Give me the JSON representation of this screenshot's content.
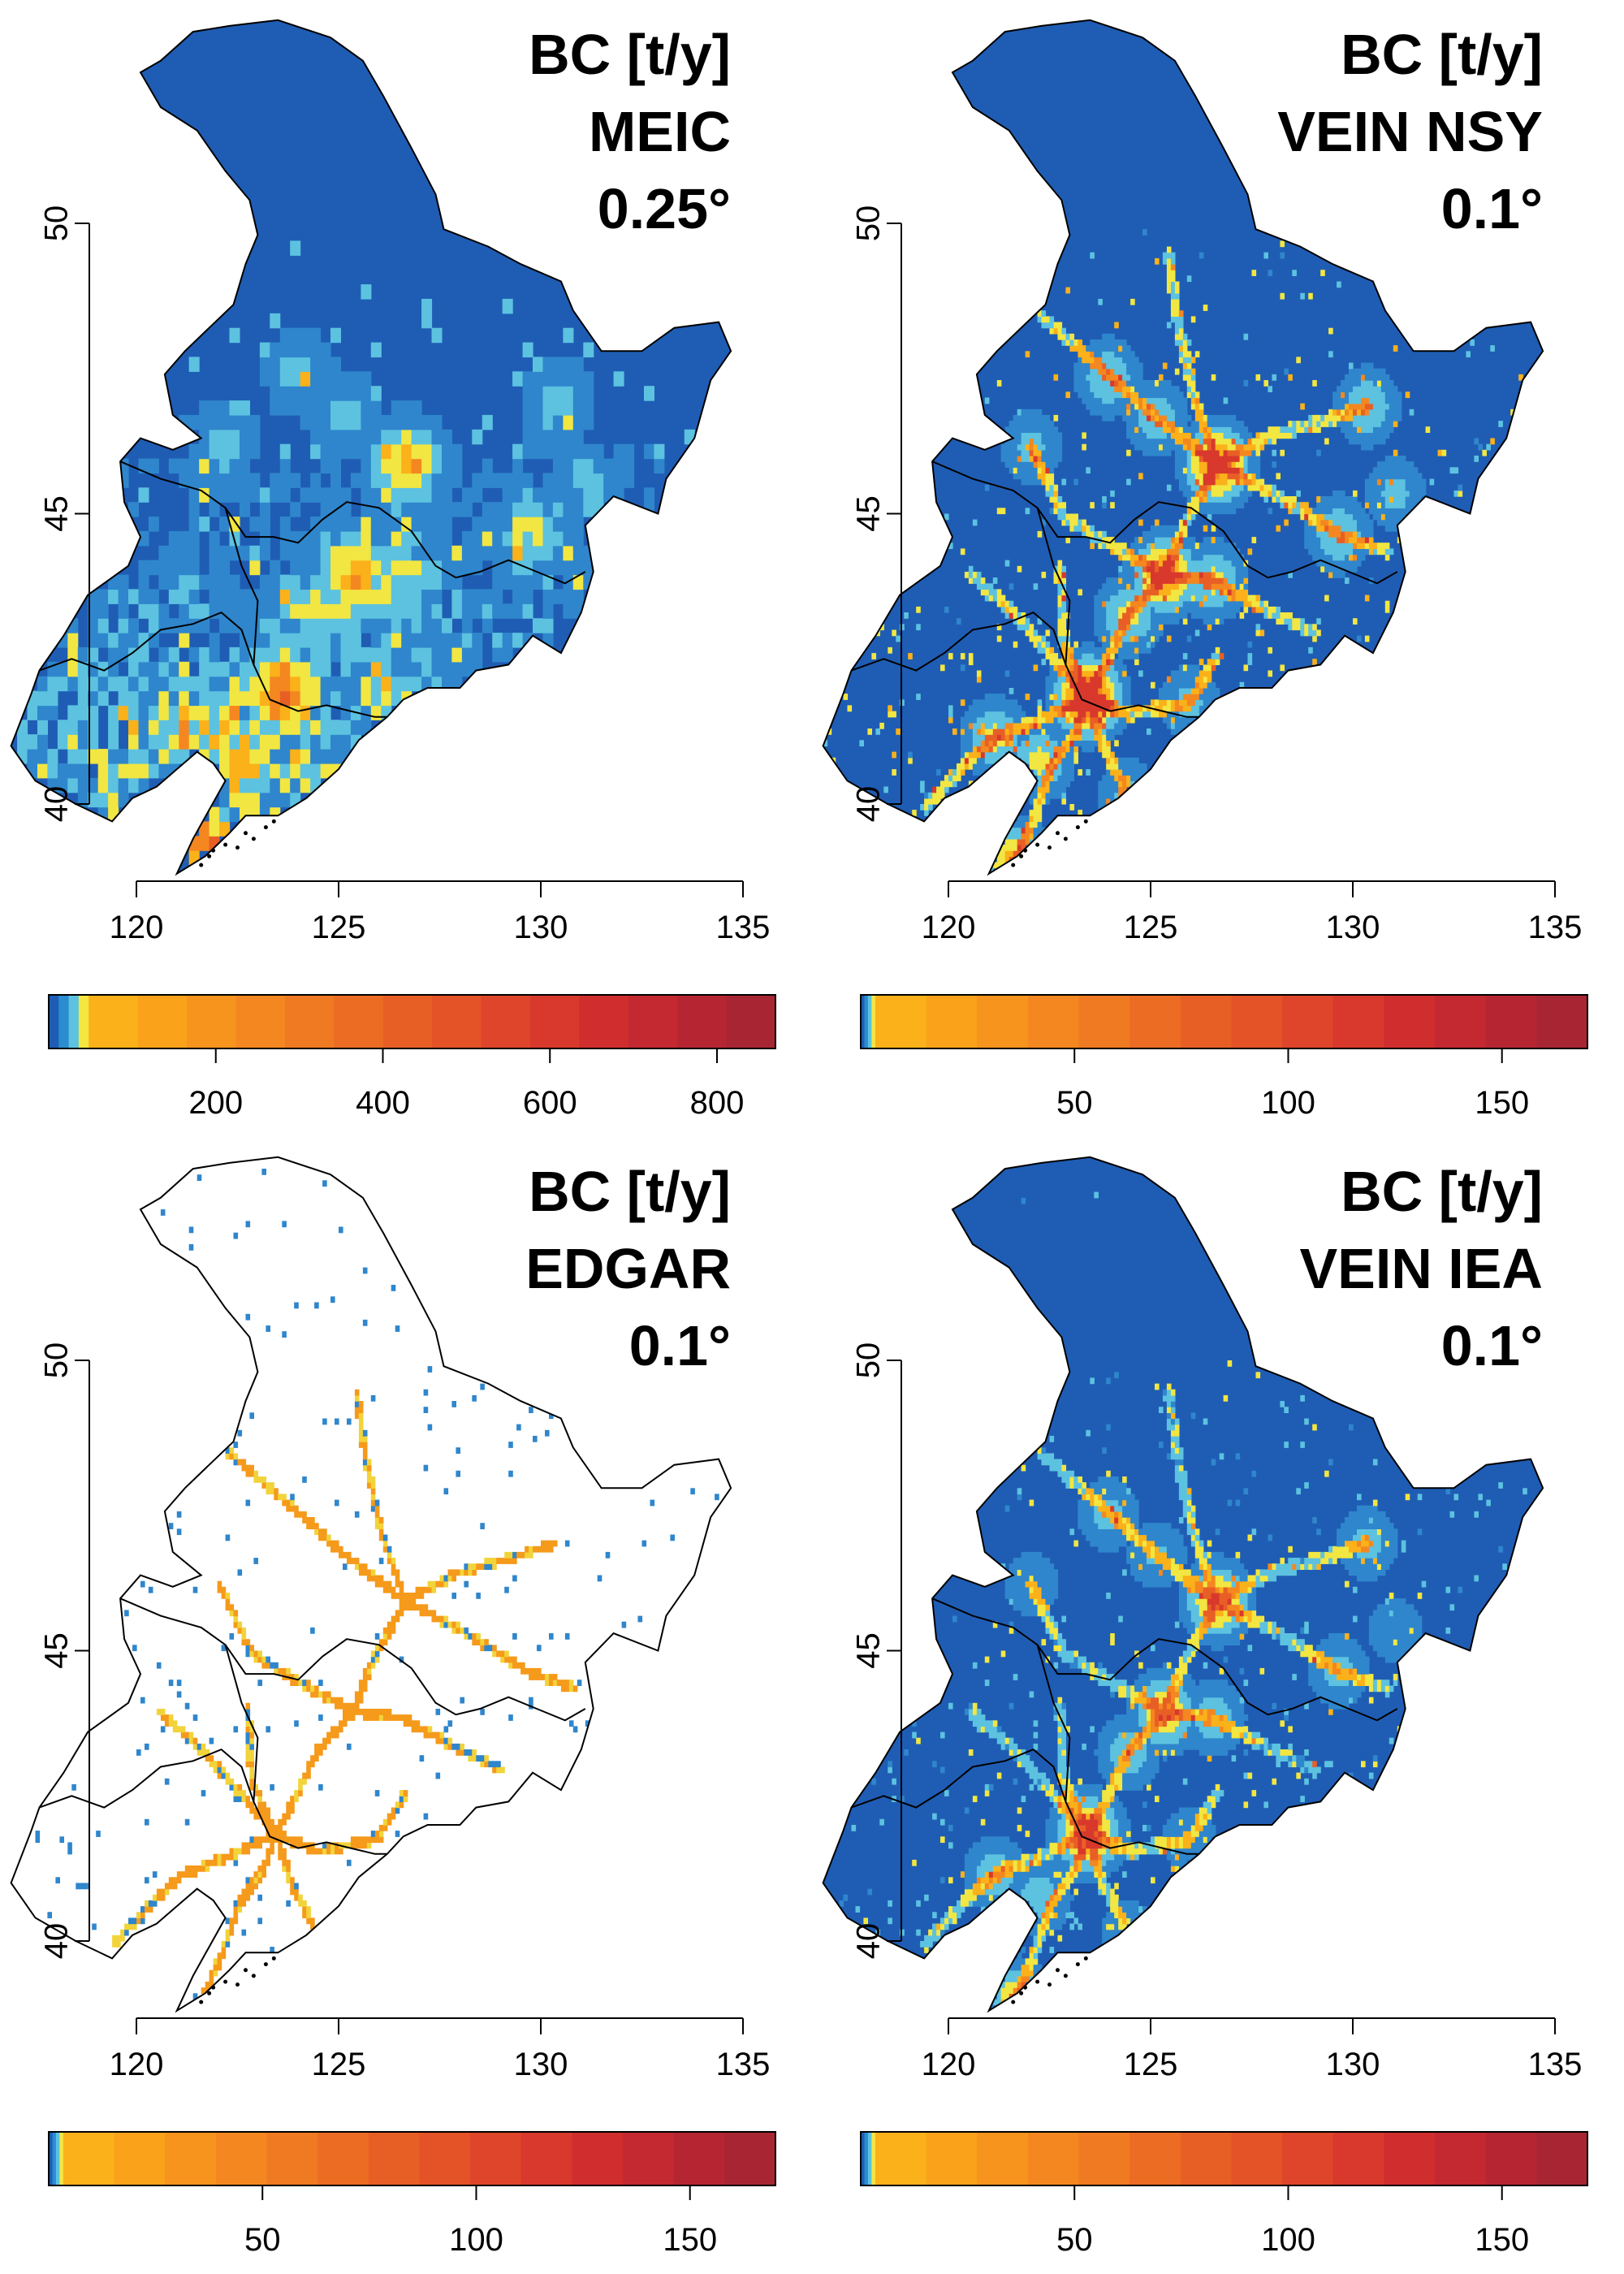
{
  "panels": [
    {
      "title": [
        "BC [t/y]",
        "MEIC",
        "0.25°"
      ],
      "map_background": "#1f5db4",
      "filled": true,
      "lat_ticks": [
        "40",
        "45",
        "50"
      ],
      "lon_ticks": [
        "120",
        "125",
        "130",
        "135"
      ],
      "colorbar": {
        "ticks": [
          "200",
          "400",
          "600",
          "800"
        ],
        "tick_values": [
          200,
          400,
          600,
          800
        ],
        "min": 0,
        "max": 870
      }
    },
    {
      "title": [
        "BC [t/y]",
        "VEIN NSY",
        "0.1°"
      ],
      "map_background": "#1f5db4",
      "filled": true,
      "lat_ticks": [
        "40",
        "45",
        "50"
      ],
      "lon_ticks": [
        "120",
        "125",
        "130",
        "135"
      ],
      "colorbar": {
        "ticks": [
          "50",
          "100",
          "150"
        ],
        "tick_values": [
          50,
          100,
          150
        ],
        "min": 0,
        "max": 170
      }
    },
    {
      "title": [
        "BC [t/y]",
        "EDGAR",
        "0.1°"
      ],
      "map_background": "#ffffff",
      "filled": false,
      "lat_ticks": [
        "40",
        "45",
        "50"
      ],
      "lon_ticks": [
        "120",
        "125",
        "130",
        "135"
      ],
      "colorbar": {
        "ticks": [
          "50",
          "100",
          "150"
        ],
        "tick_values": [
          50,
          100,
          150
        ],
        "min": 0,
        "max": 170
      }
    },
    {
      "title": [
        "BC [t/y]",
        "VEIN IEA",
        "0.1°"
      ],
      "map_background": "#1f5db4",
      "filled": true,
      "lat_ticks": [
        "40",
        "45",
        "50"
      ],
      "lon_ticks": [
        "120",
        "125",
        "130",
        "135"
      ],
      "colorbar": {
        "ticks": [
          "50",
          "100",
          "150"
        ],
        "tick_values": [
          50,
          100,
          150
        ],
        "min": 0,
        "max": 170
      }
    }
  ],
  "colorbar_colors": [
    "#1f5db4",
    "#2b8cd0",
    "#5cc2e0",
    "#f5e642",
    "#fbb11a",
    "#f9a21a",
    "#f6941e",
    "#f48720",
    "#f07a22",
    "#ec6c24",
    "#e85f26",
    "#e45228",
    "#df452a",
    "#d8392c",
    "#d02e2e",
    "#c42830",
    "#b52632",
    "#a82634"
  ],
  "colors": {
    "region_blue": "#1f5db4",
    "border": "#000000",
    "road_hot": "#f59a1b",
    "road_mid": "#f2d43a",
    "road_cool": "#2f86cc"
  }
}
